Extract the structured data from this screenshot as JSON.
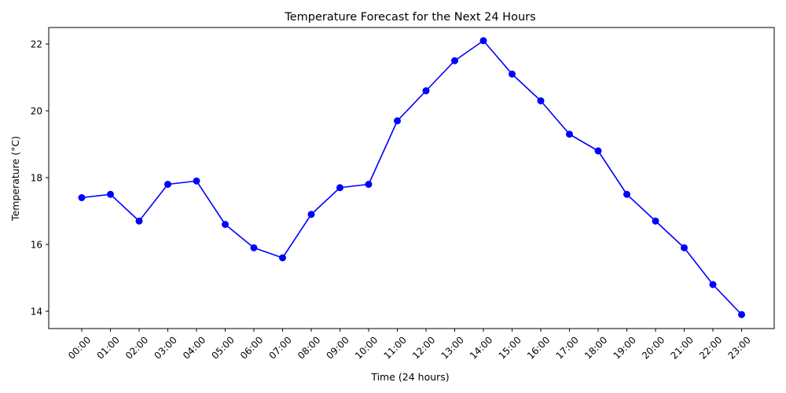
{
  "chart_data": {
    "type": "line",
    "title": "Temperature Forecast for the Next 24 Hours",
    "xlabel": "Time (24 hours)",
    "ylabel": "Temperature (°C)",
    "categories": [
      "00:00",
      "01:00",
      "02:00",
      "03:00",
      "04:00",
      "05:00",
      "06:00",
      "07:00",
      "08:00",
      "09:00",
      "10:00",
      "11:00",
      "12:00",
      "13:00",
      "14:00",
      "15:00",
      "16:00",
      "17:00",
      "18:00",
      "19:00",
      "20:00",
      "21:00",
      "22:00",
      "23:00"
    ],
    "series": [
      {
        "values": [
          17.4,
          17.5,
          16.7,
          17.8,
          17.9,
          16.6,
          15.9,
          15.6,
          16.9,
          17.7,
          17.8,
          19.7,
          20.6,
          21.5,
          22.1,
          21.1,
          20.3,
          19.3,
          18.8,
          17.5,
          16.7,
          15.9,
          14.8,
          13.9
        ],
        "color": "#0000ff",
        "marker": "circle"
      }
    ],
    "yticks": [
      14,
      16,
      18,
      20,
      22
    ],
    "ylim": [
      13.5,
      22.5
    ],
    "grid": false,
    "legend": "none"
  }
}
